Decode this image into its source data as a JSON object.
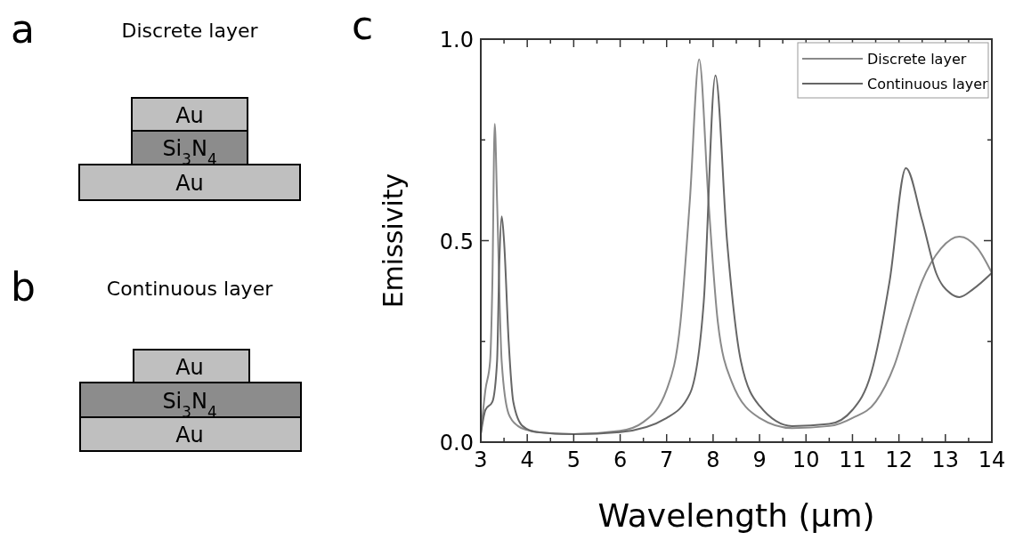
{
  "chart_data": [
    {
      "type": "other",
      "title": "Discrete layer",
      "annotations": [
        "a",
        "Au",
        "Si$_{3}$N$_{4}$",
        "Au"
      ]
    },
    {
      "type": "other",
      "title": "Continuous layer",
      "annotations": [
        "b",
        "Au",
        "Si$_{3}$N$_{4}$",
        "Au"
      ]
    },
    {
      "type": "line",
      "xlabel": "Wavelength (μm)",
      "ylabel": "Emissivity",
      "annotations": [
        "c"
      ],
      "xlim": [
        3,
        14
      ],
      "ylim": [
        0,
        1
      ],
      "xticks": [
        3,
        {
          "value": 3.5,
          "label": null
        },
        4,
        {
          "value": 4.5,
          "label": null
        },
        5,
        {
          "value": 5.5,
          "label": null
        },
        6,
        {
          "value": 6.5,
          "label": null
        },
        7,
        {
          "value": 7.5,
          "label": null
        },
        8,
        {
          "value": 8.5,
          "label": null
        },
        9,
        {
          "value": 9.5,
          "label": null
        },
        10,
        {
          "value": 10.5,
          "label": null
        },
        11,
        {
          "value": 11.5,
          "label": null
        },
        12,
        {
          "value": 12.5,
          "label": null
        },
        13,
        {
          "value": 13.5,
          "label": null
        },
        14
      ],
      "yticks": [
        {
          "value": 0,
          "label": "0.0"
        },
        {
          "value": 0.25,
          "label": null
        },
        {
          "value": 0.5,
          "label": "0.5"
        },
        {
          "value": 0.75,
          "label": null
        },
        {
          "value": 1,
          "label": "1.0"
        }
      ],
      "legend": "top right",
      "grid": false,
      "marker": "none",
      "line_style": "solid",
      "series": [
        {
          "name": "Discrete layer",
          "color": "#8a8a8a",
          "x": [
            3.0,
            3.1,
            3.2,
            3.25,
            3.3,
            3.35,
            3.45,
            3.6,
            3.8,
            4.0,
            4.5,
            5,
            6,
            6.5,
            7.0,
            7.3,
            7.5,
            7.7,
            7.9,
            8.1,
            8.4,
            9,
            9.7,
            10.5,
            11.0,
            11.5,
            11.9,
            12.2,
            12.5,
            12.9,
            13.3,
            13.7,
            14
          ],
          "values": [
            0.02,
            0.13,
            0.2,
            0.4,
            0.79,
            0.6,
            0.2,
            0.07,
            0.04,
            0.03,
            0.022,
            0.02,
            0.028,
            0.05,
            0.13,
            0.3,
            0.6,
            0.95,
            0.6,
            0.3,
            0.15,
            0.06,
            0.035,
            0.04,
            0.06,
            0.1,
            0.19,
            0.3,
            0.4,
            0.48,
            0.51,
            0.48,
            0.42
          ]
        },
        {
          "name": "Continuous layer",
          "color": "#666666",
          "x": [
            3.0,
            3.1,
            3.25,
            3.35,
            3.4,
            3.45,
            3.5,
            3.6,
            3.7,
            3.9,
            4.2,
            5,
            6,
            7,
            7.5,
            7.8,
            8.05,
            8.3,
            8.6,
            9,
            9.7,
            10.5,
            11,
            11.4,
            11.8,
            12.15,
            12.5,
            12.8,
            13.1,
            13.3,
            13.6,
            14
          ],
          "values": [
            0.02,
            0.08,
            0.1,
            0.2,
            0.45,
            0.56,
            0.5,
            0.25,
            0.1,
            0.04,
            0.025,
            0.02,
            0.025,
            0.06,
            0.12,
            0.35,
            0.91,
            0.5,
            0.2,
            0.09,
            0.04,
            0.045,
            0.08,
            0.17,
            0.4,
            0.68,
            0.55,
            0.42,
            0.37,
            0.36,
            0.38,
            0.42
          ]
        }
      ]
    }
  ]
}
